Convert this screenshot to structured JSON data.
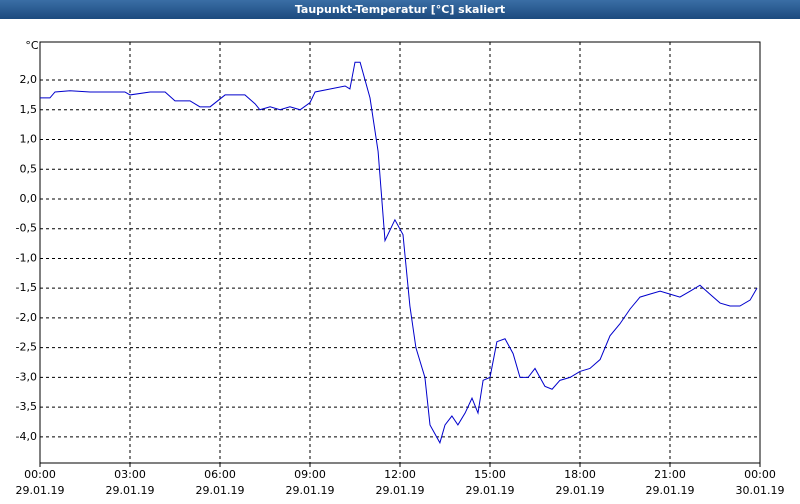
{
  "chart_data": {
    "type": "line",
    "title": "Taupunkt-Temperatur [°C] skaliert",
    "y_label": "°C",
    "x": [
      0,
      0.33,
      0.5,
      1,
      1.67,
      2.83,
      3,
      3.67,
      4.17,
      4.5,
      5,
      5.33,
      5.67,
      6.17,
      6.83,
      7.17,
      7.33,
      7.67,
      8,
      8.33,
      8.67,
      9,
      9.17,
      9.67,
      10.17,
      10.33,
      10.5,
      10.67,
      11,
      11.27,
      11.5,
      11.83,
      12.1,
      12.33,
      12.53,
      12.83,
      13,
      13.33,
      13.5,
      13.73,
      13.93,
      14.17,
      14.4,
      14.6,
      14.77,
      15,
      15.23,
      15.5,
      15.77,
      16,
      16.27,
      16.5,
      16.83,
      17.07,
      17.33,
      17.67,
      18,
      18.33,
      18.67,
      19,
      19.33,
      19.67,
      20,
      20.33,
      20.67,
      21,
      21.33,
      21.67,
      22,
      22.33,
      22.67,
      23,
      23.33,
      23.67,
      23.9
    ],
    "series": [
      {
        "name": "Taupunkt",
        "color": "#0000cc",
        "values": [
          1.7,
          1.7,
          1.8,
          1.82,
          1.8,
          1.8,
          1.75,
          1.8,
          1.8,
          1.65,
          1.65,
          1.55,
          1.55,
          1.75,
          1.75,
          1.6,
          1.5,
          1.55,
          1.5,
          1.55,
          1.5,
          1.62,
          1.8,
          1.85,
          1.9,
          1.85,
          2.3,
          2.3,
          1.7,
          0.8,
          -0.7,
          -0.35,
          -0.6,
          -1.8,
          -2.5,
          -3.0,
          -3.8,
          -4.1,
          -3.8,
          -3.65,
          -3.8,
          -3.6,
          -3.35,
          -3.6,
          -3.05,
          -3.0,
          -2.4,
          -2.35,
          -2.6,
          -3.0,
          -3.0,
          -2.85,
          -3.15,
          -3.2,
          -3.05,
          -3.0,
          -2.9,
          -2.85,
          -2.7,
          -2.3,
          -2.1,
          -1.85,
          -1.65,
          -1.6,
          -1.55,
          -1.6,
          -1.65,
          -1.55,
          -1.45,
          -1.6,
          -1.75,
          -1.8,
          -1.8,
          -1.7,
          -1.5
        ]
      }
    ],
    "xlim": [
      0,
      24
    ],
    "ylim": [
      -4.44,
      2.64
    ],
    "xticks": [
      {
        "value": 0,
        "label": "00:00"
      },
      {
        "value": 3,
        "label": "03:00"
      },
      {
        "value": 6,
        "label": "06:00"
      },
      {
        "value": 9,
        "label": "09:00"
      },
      {
        "value": 12,
        "label": "12:00"
      },
      {
        "value": 15,
        "label": "15:00"
      },
      {
        "value": 18,
        "label": "18:00"
      },
      {
        "value": 21,
        "label": "21:00"
      },
      {
        "value": 24,
        "label": "00:00"
      }
    ],
    "xtick_dates": [
      "29.01.19",
      "29.01.19",
      "29.01.19",
      "29.01.19",
      "29.01.19",
      "29.01.19",
      "29.01.19",
      "29.01.19",
      "30.01.19"
    ],
    "yticks": [
      {
        "value": 2,
        "label": "2,0"
      },
      {
        "value": 1.5,
        "label": "1,5"
      },
      {
        "value": 1,
        "label": "1,0"
      },
      {
        "value": 0.5,
        "label": "0,5"
      },
      {
        "value": 0,
        "label": "0,0"
      },
      {
        "value": -0.5,
        "label": "-0,5"
      },
      {
        "value": -1,
        "label": "-1,0"
      },
      {
        "value": -1.5,
        "label": "-1,5"
      },
      {
        "value": -2,
        "label": "-2,0"
      },
      {
        "value": -2.5,
        "label": "-2,5"
      },
      {
        "value": -3,
        "label": "-3,0"
      },
      {
        "value": -3.5,
        "label": "-3,5"
      },
      {
        "value": -4,
        "label": "-4,0"
      }
    ],
    "grid": true
  }
}
